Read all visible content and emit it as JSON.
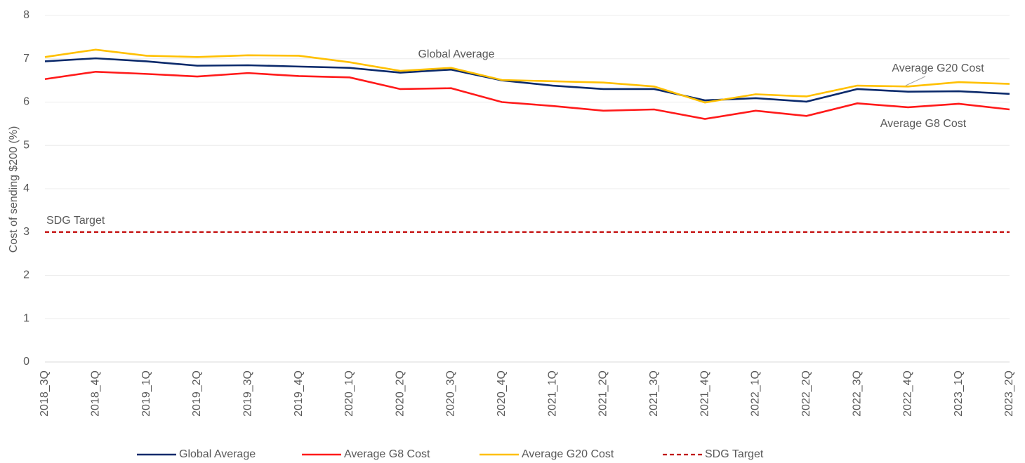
{
  "chart_data": {
    "type": "line",
    "y_label": "Cost of sending $200 (%)",
    "categories": [
      "2018_3Q",
      "2018_4Q",
      "2019_1Q",
      "2019_2Q",
      "2019_3Q",
      "2019_4Q",
      "2020_1Q",
      "2020_2Q",
      "2020_3Q",
      "2020_4Q",
      "2021_1Q",
      "2021_2Q",
      "2021_3Q",
      "2021_4Q",
      "2022_1Q",
      "2022_2Q",
      "2022_3Q",
      "2022_4Q",
      "2023_1Q",
      "2023_2Q"
    ],
    "series": [
      {
        "name": "Global Average",
        "color": "#0b2a6b",
        "values": [
          6.94,
          7.01,
          6.94,
          6.84,
          6.85,
          6.82,
          6.79,
          6.68,
          6.75,
          6.5,
          6.38,
          6.3,
          6.3,
          6.04,
          6.09,
          6.01,
          6.3,
          6.24,
          6.25,
          6.19
        ]
      },
      {
        "name": "Average G8 Cost",
        "color": "#ff1a1a",
        "values": [
          6.53,
          6.7,
          6.65,
          6.59,
          6.67,
          6.6,
          6.57,
          6.3,
          6.32,
          6.0,
          5.91,
          5.8,
          5.83,
          5.61,
          5.8,
          5.68,
          5.97,
          5.88,
          5.96,
          5.83
        ]
      },
      {
        "name": "Average G20 Cost",
        "color": "#ffc000",
        "values": [
          7.04,
          7.21,
          7.07,
          7.04,
          7.08,
          7.07,
          6.92,
          6.72,
          6.79,
          6.51,
          6.48,
          6.45,
          6.36,
          5.99,
          6.18,
          6.13,
          6.38,
          6.36,
          6.46,
          6.42
        ]
      },
      {
        "name": "SDG Target",
        "color": "#c00000",
        "dashed": true,
        "values": [
          3,
          3,
          3,
          3,
          3,
          3,
          3,
          3,
          3,
          3,
          3,
          3,
          3,
          3,
          3,
          3,
          3,
          3,
          3,
          3
        ]
      }
    ],
    "annotations": [
      "Global Average",
      "Average G20 Cost",
      "Average G8 Cost",
      "SDG Target"
    ],
    "ylim": [
      0,
      8
    ],
    "yticks": [
      0,
      1,
      2,
      3,
      4,
      5,
      6,
      7,
      8
    ],
    "grid": true,
    "legend": "bottom"
  }
}
